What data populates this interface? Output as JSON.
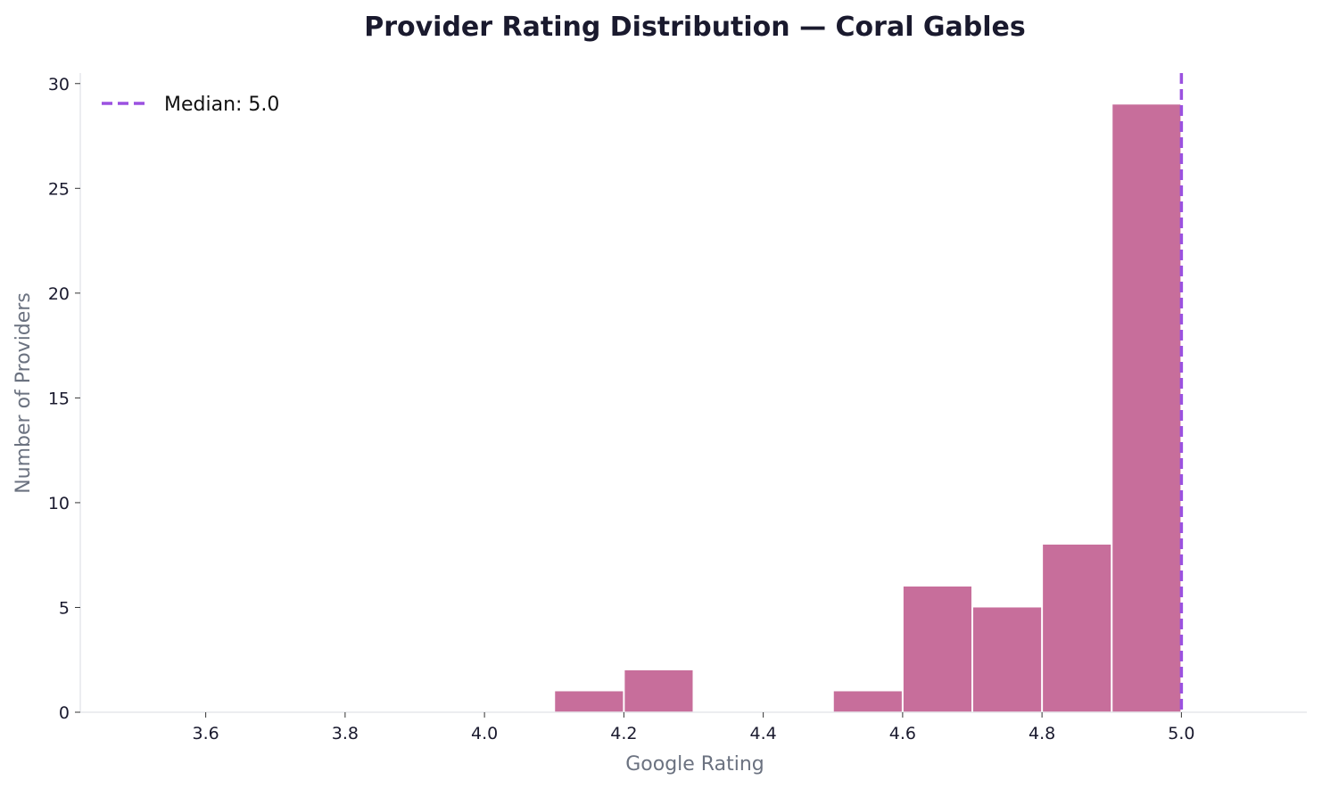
{
  "chart_data": {
    "type": "bar",
    "title": "Provider Rating Distribution — Coral Gables",
    "xlabel": "Google Rating",
    "ylabel": "Number of Providers",
    "xlim": [
      3.42,
      5.18
    ],
    "ylim": [
      0,
      30.5
    ],
    "xticks": [
      "3.6",
      "3.8",
      "4.0",
      "4.2",
      "4.4",
      "4.6",
      "4.8",
      "5.0"
    ],
    "yticks": [
      "0",
      "5",
      "10",
      "15",
      "20",
      "25",
      "30"
    ],
    "bins": [
      {
        "start": 4.1,
        "end": 4.2,
        "count": 1
      },
      {
        "start": 4.2,
        "end": 4.3,
        "count": 2
      },
      {
        "start": 4.5,
        "end": 4.6,
        "count": 1
      },
      {
        "start": 4.6,
        "end": 4.7,
        "count": 6
      },
      {
        "start": 4.7,
        "end": 4.8,
        "count": 5
      },
      {
        "start": 4.8,
        "end": 4.9,
        "count": 8
      },
      {
        "start": 4.9,
        "end": 5.0,
        "count": 29
      }
    ],
    "median": 5.0,
    "legend": {
      "label": "Median: 5.0",
      "placement": "top-left"
    },
    "grid": false,
    "colors": {
      "bar": "#c76e9b",
      "median": "#9b51e0",
      "title": "#1a1a2e"
    }
  }
}
